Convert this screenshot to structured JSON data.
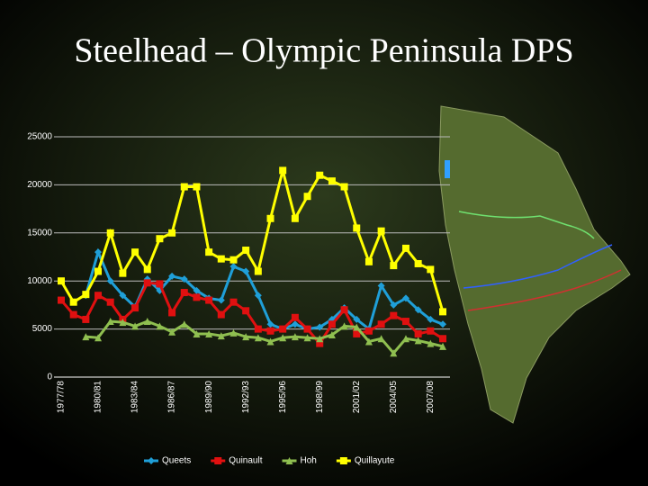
{
  "chart_data": {
    "type": "line",
    "title": "Steelhead – Olympic Peninsula DPS",
    "categories": [
      "1977/78",
      null,
      null,
      "1980/81",
      null,
      null,
      "1983/84",
      null,
      null,
      "1986/87",
      null,
      null,
      "1989/90",
      null,
      null,
      "1992/93",
      null,
      null,
      "1995/96",
      null,
      null,
      "1998/99",
      null,
      null,
      "2001/02",
      null,
      null,
      "2004/05",
      null,
      null,
      "2007/08",
      null
    ],
    "series": [
      {
        "name": "Queets",
        "color": "#1f9fd8",
        "marker": "diamond",
        "values": [
          null,
          null,
          8500,
          13000,
          10000,
          8500,
          7300,
          10200,
          9000,
          10500,
          10200,
          9000,
          8200,
          8000,
          11500,
          11000,
          8500,
          5500,
          5000,
          5500,
          5000,
          5200,
          6000,
          7200,
          6000,
          5000,
          9500,
          7500,
          8200,
          7000,
          6000,
          5500
        ]
      },
      {
        "name": "Quinault",
        "color": "#e01010",
        "marker": "square",
        "values": [
          8000,
          6500,
          6000,
          8500,
          7800,
          6000,
          7200,
          9800,
          9700,
          6700,
          8800,
          8300,
          8000,
          6500,
          7800,
          6900,
          5000,
          4800,
          5000,
          6200,
          5000,
          3500,
          5500,
          7000,
          4500,
          4800,
          5500,
          6400,
          5800,
          4500,
          4800,
          4000
        ]
      },
      {
        "name": "Hoh",
        "color": "#8fbf50",
        "marker": "triangle",
        "values": [
          null,
          null,
          4200,
          4100,
          5800,
          5700,
          5300,
          5800,
          5300,
          4700,
          5500,
          4500,
          4500,
          4300,
          4600,
          4200,
          4100,
          3700,
          4100,
          4200,
          4100,
          4000,
          4400,
          5300,
          5200,
          3700,
          4000,
          2500,
          4000,
          3800,
          3500,
          3200
        ]
      },
      {
        "name": "Quillayute",
        "color": "#ffff00",
        "marker": "square",
        "values": [
          10000,
          7800,
          8600,
          11000,
          15000,
          10800,
          13000,
          11200,
          14400,
          15000,
          19800,
          19800,
          13000,
          12300,
          12200,
          13200,
          11000,
          16500,
          21500,
          16500,
          18800,
          21000,
          20400,
          19800,
          15500,
          12000,
          15200,
          11600,
          13400,
          11800,
          11200,
          6800
        ]
      }
    ],
    "ylim": [
      0,
      25000
    ],
    "yticks": [
      0,
      5000,
      10000,
      15000,
      20000,
      25000
    ],
    "grid": true,
    "legend": "bottom"
  }
}
